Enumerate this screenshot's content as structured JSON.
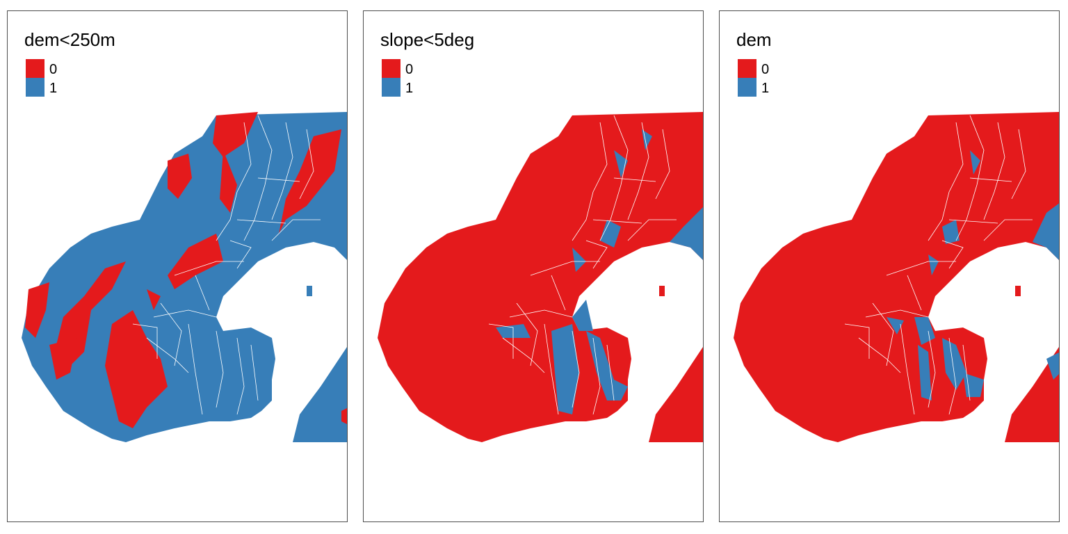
{
  "panels": [
    {
      "title": "dem<250m",
      "legend": [
        {
          "label": "0",
          "color": "#e41a1c"
        },
        {
          "label": "1",
          "color": "#377eb8"
        }
      ],
      "highland_class": "0",
      "lowland_class": "1"
    },
    {
      "title": "slope<5deg",
      "legend": [
        {
          "label": "0",
          "color": "#e41a1c"
        },
        {
          "label": "1",
          "color": "#377eb8"
        }
      ],
      "highland_class": "0",
      "lowland_class": "0"
    },
    {
      "title": "dem",
      "legend": [
        {
          "label": "0",
          "color": "#e41a1c"
        },
        {
          "label": "1",
          "color": "#377eb8"
        }
      ],
      "highland_class": "0",
      "lowland_class": "0"
    }
  ]
}
